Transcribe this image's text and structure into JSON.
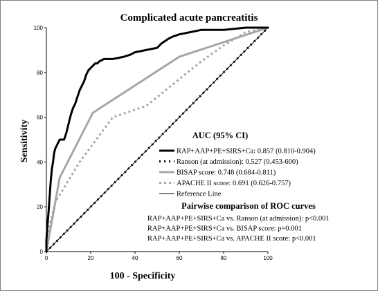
{
  "chart_data": {
    "type": "line",
    "title": "Complicated acute pancreatitis",
    "xlabel": "100 - Specificity",
    "ylabel": "Sensitivity",
    "xlim": [
      0,
      100
    ],
    "ylim": [
      0,
      100
    ],
    "xticks": [
      0,
      20,
      40,
      60,
      80,
      100
    ],
    "yticks": [
      0,
      20,
      40,
      60,
      80,
      100
    ],
    "grid": false,
    "legend_placement": "bottom-right",
    "legend_title": "AUC (95% CI)",
    "series": [
      {
        "name": "RAP+AAP+PE+SIRS+Ca",
        "legend_label": "RAP+AAP+PE+SIRS+Ca: 0.857 (0.810-0.904)",
        "color": "#000000",
        "style": "solid-thick",
        "points": [
          [
            0,
            0
          ],
          [
            0,
            5
          ],
          [
            0.5,
            12
          ],
          [
            1,
            18
          ],
          [
            1.5,
            25
          ],
          [
            2,
            32
          ],
          [
            2.5,
            37
          ],
          [
            3,
            40
          ],
          [
            3.5,
            44
          ],
          [
            4,
            46
          ],
          [
            5,
            48
          ],
          [
            6,
            50
          ],
          [
            8,
            50
          ],
          [
            9,
            53
          ],
          [
            10,
            57
          ],
          [
            11,
            61
          ],
          [
            12,
            64
          ],
          [
            13,
            66
          ],
          [
            14,
            69
          ],
          [
            15,
            72
          ],
          [
            16,
            74
          ],
          [
            17,
            76
          ],
          [
            18,
            79
          ],
          [
            19,
            81
          ],
          [
            20,
            82
          ],
          [
            21,
            83
          ],
          [
            22,
            84
          ],
          [
            23,
            84
          ],
          [
            24,
            85
          ],
          [
            26,
            86
          ],
          [
            30,
            86
          ],
          [
            35,
            87
          ],
          [
            38,
            88
          ],
          [
            40,
            89
          ],
          [
            45,
            90
          ],
          [
            50,
            91
          ],
          [
            52,
            93
          ],
          [
            55,
            95
          ],
          [
            57,
            96
          ],
          [
            60,
            97
          ],
          [
            65,
            98
          ],
          [
            70,
            99
          ],
          [
            80,
            99
          ],
          [
            90,
            100
          ],
          [
            100,
            100
          ]
        ]
      },
      {
        "name": "Ranson (at admission)",
        "legend_label": "Ranson (at admission): 0.527 (0.453-600)",
        "color": "#000000",
        "style": "dotted-thick",
        "points": [
          [
            0,
            0
          ],
          [
            100,
            100
          ]
        ]
      },
      {
        "name": "BISAP score",
        "legend_label": "BISAP score: 0.748 (0.684-0.811)",
        "color": "#a6a6a6",
        "style": "solid-thick",
        "points": [
          [
            0,
            0
          ],
          [
            6,
            33
          ],
          [
            21,
            62
          ],
          [
            60,
            87
          ],
          [
            100,
            100
          ]
        ]
      },
      {
        "name": "APACHE II score",
        "legend_label": "APACHE II score: 0.691 (0.626-0.757)",
        "color": "#a6a6a6",
        "style": "dotted",
        "points": [
          [
            0,
            0
          ],
          [
            1,
            10
          ],
          [
            4,
            22
          ],
          [
            15,
            40
          ],
          [
            30,
            60
          ],
          [
            45,
            65
          ],
          [
            60,
            77
          ],
          [
            70,
            85
          ],
          [
            80,
            92
          ],
          [
            90,
            98
          ],
          [
            100,
            100
          ]
        ]
      },
      {
        "name": "Reference Line",
        "legend_label": "Reference Line",
        "color": "#000000",
        "style": "thin",
        "points": [
          [
            0,
            0
          ],
          [
            100,
            100
          ]
        ]
      }
    ],
    "comparison_title": "Pairwise comparison of ROC curves",
    "comparisons": [
      "RAP+AAP+PE+SIRS+Ca vs. Ranson (at admission): p<0.001",
      "RAP+AAP+PE+SIRS+Ca vs. BISAP score: p=0.001",
      "RAP+AAP+PE+SIRS+Ca vs. APACHE II score: p<0.001"
    ]
  }
}
